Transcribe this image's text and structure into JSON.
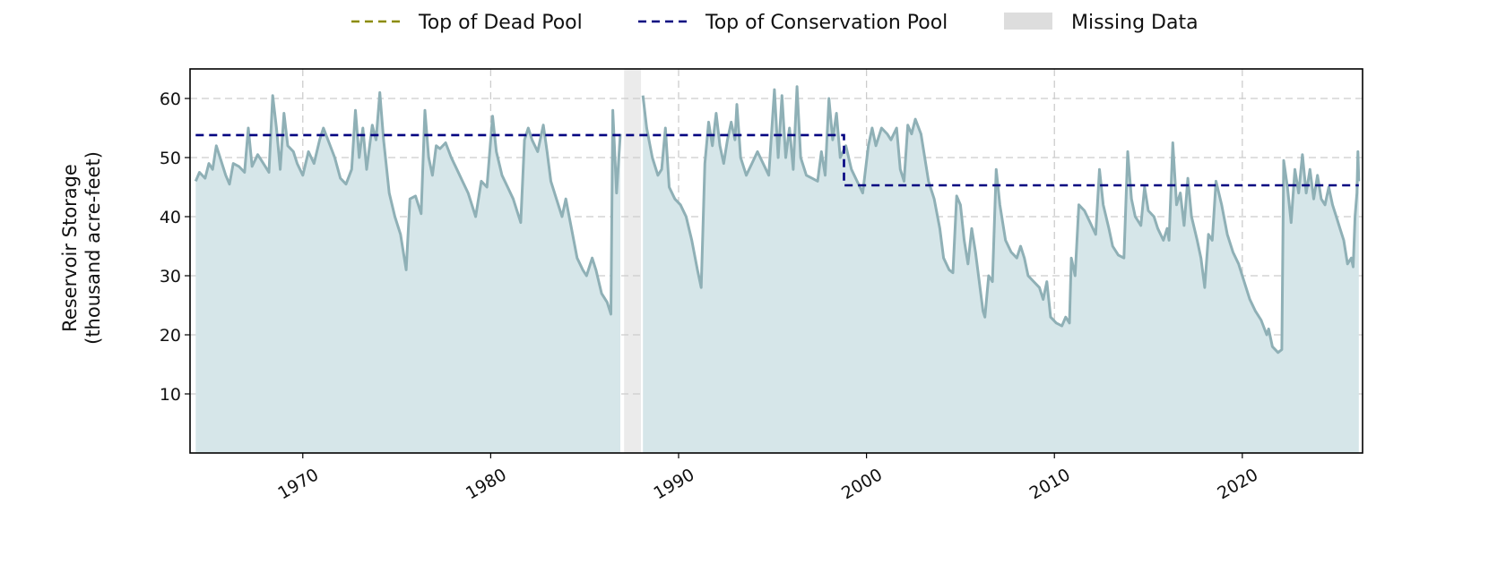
{
  "chart_data": {
    "type": "area",
    "title": "",
    "xlabel": "",
    "ylabel_lines": [
      "Reservoir Storage",
      "(thousand acre-feet)"
    ],
    "xlim": [
      1964.0,
      2026.4
    ],
    "ylim": [
      0,
      65
    ],
    "yticks": [
      10,
      20,
      30,
      40,
      50,
      60
    ],
    "xticks": [
      1970,
      1980,
      1990,
      2000,
      2010,
      2020
    ],
    "grid": true,
    "legend_position": "top-center",
    "legend": [
      {
        "label": "Top of Dead Pool",
        "style": "dashed-line",
        "color": "#8b8b00"
      },
      {
        "label": "Top of Conservation Pool",
        "style": "dashed-line",
        "color": "#000080"
      },
      {
        "label": "Missing Data",
        "style": "patch",
        "color": "#dddddd"
      }
    ],
    "colors": {
      "storage_line": "#8fb0b6",
      "storage_fill": "#d6e6e9",
      "conservation_pool": "#000080",
      "dead_pool": "#8b8b00",
      "missing": "#ebebeb",
      "grid": "#cccccc"
    },
    "missing_ranges": [
      [
        1987.1,
        1988.0
      ]
    ],
    "conservation_pool": {
      "x": [
        1964.3,
        1998.8,
        1998.8,
        2026.2
      ],
      "y": [
        53.8,
        53.8,
        45.3,
        45.3
      ]
    },
    "series": [
      {
        "values": [
          [
            1964.3,
            46.0
          ],
          [
            1964.5,
            47.5
          ],
          [
            1964.8,
            46.5
          ],
          [
            1965.0,
            49.0
          ],
          [
            1965.2,
            48.0
          ],
          [
            1965.4,
            52.0
          ],
          [
            1965.6,
            50.0
          ],
          [
            1965.9,
            47.0
          ],
          [
            1966.1,
            45.5
          ],
          [
            1966.3,
            49.0
          ],
          [
            1966.6,
            48.5
          ],
          [
            1966.9,
            47.5
          ],
          [
            1967.1,
            55.0
          ],
          [
            1967.3,
            48.5
          ],
          [
            1967.6,
            50.5
          ],
          [
            1967.9,
            49.0
          ],
          [
            1968.2,
            47.5
          ],
          [
            1968.4,
            60.5
          ],
          [
            1968.6,
            55.0
          ],
          [
            1968.8,
            48.0
          ],
          [
            1969.0,
            57.5
          ],
          [
            1969.2,
            52.0
          ],
          [
            1969.5,
            51.0
          ],
          [
            1969.7,
            49.0
          ],
          [
            1970.0,
            47.0
          ],
          [
            1970.3,
            51.0
          ],
          [
            1970.6,
            49.0
          ],
          [
            1970.9,
            53.0
          ],
          [
            1971.1,
            55.0
          ],
          [
            1971.4,
            52.5
          ],
          [
            1971.7,
            50.0
          ],
          [
            1972.0,
            46.5
          ],
          [
            1972.3,
            45.5
          ],
          [
            1972.6,
            48.0
          ],
          [
            1972.8,
            58.0
          ],
          [
            1973.0,
            50.0
          ],
          [
            1973.2,
            55.0
          ],
          [
            1973.4,
            48.0
          ],
          [
            1973.7,
            55.5
          ],
          [
            1973.9,
            53.0
          ],
          [
            1974.1,
            61.0
          ],
          [
            1974.3,
            53.0
          ],
          [
            1974.6,
            44.0
          ],
          [
            1974.9,
            40.0
          ],
          [
            1975.2,
            37.0
          ],
          [
            1975.4,
            33.0
          ],
          [
            1975.5,
            31.0
          ],
          [
            1975.7,
            43.0
          ],
          [
            1976.0,
            43.5
          ],
          [
            1976.3,
            40.5
          ],
          [
            1976.5,
            58.0
          ],
          [
            1976.7,
            50.0
          ],
          [
            1976.9,
            47.0
          ],
          [
            1977.1,
            52.0
          ],
          [
            1977.3,
            51.5
          ],
          [
            1977.6,
            52.5
          ],
          [
            1977.9,
            50.0
          ],
          [
            1978.2,
            48.0
          ],
          [
            1978.5,
            46.0
          ],
          [
            1978.8,
            44.0
          ],
          [
            1979.0,
            42.0
          ],
          [
            1979.2,
            40.0
          ],
          [
            1979.5,
            46.0
          ],
          [
            1979.8,
            45.0
          ],
          [
            1980.1,
            57.0
          ],
          [
            1980.3,
            51.0
          ],
          [
            1980.6,
            47.0
          ],
          [
            1980.9,
            45.0
          ],
          [
            1981.2,
            43.0
          ],
          [
            1981.4,
            41.0
          ],
          [
            1981.6,
            39.0
          ],
          [
            1981.8,
            53.0
          ],
          [
            1982.0,
            55.0
          ],
          [
            1982.2,
            53.0
          ],
          [
            1982.5,
            51.0
          ],
          [
            1982.8,
            55.5
          ],
          [
            1983.0,
            51.0
          ],
          [
            1983.2,
            46.0
          ],
          [
            1983.5,
            43.0
          ],
          [
            1983.8,
            40.0
          ],
          [
            1984.0,
            43.0
          ],
          [
            1984.3,
            38.0
          ],
          [
            1984.6,
            33.0
          ],
          [
            1984.9,
            31.0
          ],
          [
            1985.1,
            30.0
          ],
          [
            1985.4,
            33.0
          ],
          [
            1985.6,
            31.0
          ],
          [
            1985.9,
            27.0
          ],
          [
            1986.2,
            25.5
          ],
          [
            1986.4,
            23.5
          ],
          [
            1986.5,
            58.0
          ],
          [
            1986.7,
            44.0
          ],
          [
            1986.9,
            54.0
          ],
          [
            1987.1,
            53.0
          ],
          [
            1987.3,
            52.5
          ],
          [
            1987.5,
            56.0
          ],
          [
            1987.7,
            49.0
          ],
          [
            1987.9,
            54.5
          ],
          [
            1988.1,
            60.5
          ],
          [
            1988.3,
            55.0
          ],
          [
            1988.6,
            50.0
          ],
          [
            1988.9,
            47.0
          ],
          [
            1989.1,
            48.0
          ],
          [
            1989.3,
            55.0
          ],
          [
            1989.5,
            45.0
          ],
          [
            1989.8,
            43.0
          ],
          [
            1990.1,
            42.0
          ],
          [
            1990.4,
            40.0
          ],
          [
            1990.7,
            36.0
          ],
          [
            1991.0,
            31.0
          ],
          [
            1991.2,
            28.0
          ],
          [
            1991.4,
            49.0
          ],
          [
            1991.6,
            56.0
          ],
          [
            1991.8,
            52.0
          ],
          [
            1992.0,
            57.5
          ],
          [
            1992.2,
            52.0
          ],
          [
            1992.4,
            49.0
          ],
          [
            1992.6,
            53.0
          ],
          [
            1992.8,
            56.0
          ],
          [
            1993.0,
            53.0
          ],
          [
            1993.1,
            59.0
          ],
          [
            1993.3,
            50.0
          ],
          [
            1993.6,
            47.0
          ],
          [
            1993.9,
            49.0
          ],
          [
            1994.2,
            51.0
          ],
          [
            1994.5,
            49.0
          ],
          [
            1994.8,
            47.0
          ],
          [
            1995.1,
            61.5
          ],
          [
            1995.3,
            50.0
          ],
          [
            1995.5,
            60.5
          ],
          [
            1995.7,
            50.0
          ],
          [
            1995.9,
            55.0
          ],
          [
            1996.1,
            48.0
          ],
          [
            1996.3,
            62.0
          ],
          [
            1996.5,
            50.0
          ],
          [
            1996.8,
            47.0
          ],
          [
            1997.1,
            46.5
          ],
          [
            1997.4,
            46.0
          ],
          [
            1997.6,
            51.0
          ],
          [
            1997.8,
            47.0
          ],
          [
            1998.0,
            60.0
          ],
          [
            1998.2,
            53.0
          ],
          [
            1998.4,
            57.5
          ],
          [
            1998.6,
            50.0
          ],
          [
            1998.9,
            52.0
          ],
          [
            1999.2,
            48.0
          ],
          [
            1999.5,
            46.0
          ],
          [
            1999.8,
            44.0
          ],
          [
            2000.1,
            52.0
          ],
          [
            2000.3,
            55.0
          ],
          [
            2000.5,
            52.0
          ],
          [
            2000.8,
            55.0
          ],
          [
            2001.1,
            54.0
          ],
          [
            2001.3,
            53.0
          ],
          [
            2001.6,
            55.0
          ],
          [
            2001.8,
            48.0
          ],
          [
            2002.0,
            46.0
          ],
          [
            2002.2,
            55.5
          ],
          [
            2002.4,
            54.0
          ],
          [
            2002.6,
            56.5
          ],
          [
            2002.9,
            54.0
          ],
          [
            2003.1,
            50.0
          ],
          [
            2003.3,
            46.0
          ],
          [
            2003.6,
            43.0
          ],
          [
            2003.9,
            38.0
          ],
          [
            2004.1,
            33.0
          ],
          [
            2004.4,
            31.0
          ],
          [
            2004.6,
            30.5
          ],
          [
            2004.8,
            43.5
          ],
          [
            2005.0,
            42.0
          ],
          [
            2005.2,
            36.0
          ],
          [
            2005.4,
            32.0
          ],
          [
            2005.6,
            38.0
          ],
          [
            2005.8,
            34.0
          ],
          [
            2006.0,
            29.0
          ],
          [
            2006.2,
            24.0
          ],
          [
            2006.3,
            23.0
          ],
          [
            2006.5,
            30.0
          ],
          [
            2006.7,
            29.0
          ],
          [
            2006.9,
            48.0
          ],
          [
            2007.1,
            42.0
          ],
          [
            2007.4,
            36.0
          ],
          [
            2007.7,
            34.0
          ],
          [
            2008.0,
            33.0
          ],
          [
            2008.2,
            35.0
          ],
          [
            2008.4,
            33.0
          ],
          [
            2008.6,
            30.0
          ],
          [
            2008.9,
            29.0
          ],
          [
            2009.2,
            28.0
          ],
          [
            2009.4,
            26.0
          ],
          [
            2009.6,
            29.0
          ],
          [
            2009.8,
            23.0
          ],
          [
            2010.1,
            22.0
          ],
          [
            2010.4,
            21.5
          ],
          [
            2010.6,
            23.0
          ],
          [
            2010.8,
            22.0
          ],
          [
            2010.9,
            33.0
          ],
          [
            2011.1,
            30.0
          ],
          [
            2011.3,
            42.0
          ],
          [
            2011.6,
            41.0
          ],
          [
            2011.9,
            39.0
          ],
          [
            2012.2,
            37.0
          ],
          [
            2012.4,
            48.0
          ],
          [
            2012.6,
            42.0
          ],
          [
            2012.9,
            38.0
          ],
          [
            2013.1,
            35.0
          ],
          [
            2013.4,
            33.5
          ],
          [
            2013.7,
            33.0
          ],
          [
            2013.9,
            51.0
          ],
          [
            2014.1,
            43.0
          ],
          [
            2014.3,
            40.0
          ],
          [
            2014.6,
            38.5
          ],
          [
            2014.8,
            45.0
          ],
          [
            2015.0,
            41.0
          ],
          [
            2015.3,
            40.0
          ],
          [
            2015.5,
            38.0
          ],
          [
            2015.8,
            36.0
          ],
          [
            2016.0,
            38.0
          ],
          [
            2016.1,
            36.0
          ],
          [
            2016.3,
            52.5
          ],
          [
            2016.5,
            42.0
          ],
          [
            2016.7,
            44.0
          ],
          [
            2016.9,
            38.5
          ],
          [
            2017.1,
            46.5
          ],
          [
            2017.3,
            40.0
          ],
          [
            2017.6,
            36.0
          ],
          [
            2017.8,
            33.0
          ],
          [
            2018.0,
            28.0
          ],
          [
            2018.2,
            37.0
          ],
          [
            2018.4,
            36.0
          ],
          [
            2018.6,
            46.0
          ],
          [
            2018.9,
            42.0
          ],
          [
            2019.2,
            37.0
          ],
          [
            2019.5,
            34.0
          ],
          [
            2019.8,
            32.0
          ],
          [
            2020.1,
            29.0
          ],
          [
            2020.4,
            26.0
          ],
          [
            2020.7,
            24.0
          ],
          [
            2021.0,
            22.5
          ],
          [
            2021.3,
            20.0
          ],
          [
            2021.4,
            21.0
          ],
          [
            2021.6,
            18.0
          ],
          [
            2021.9,
            17.0
          ],
          [
            2022.1,
            17.5
          ],
          [
            2022.2,
            49.5
          ],
          [
            2022.4,
            45.0
          ],
          [
            2022.6,
            39.0
          ],
          [
            2022.8,
            48.0
          ],
          [
            2023.0,
            44.0
          ],
          [
            2023.2,
            50.5
          ],
          [
            2023.4,
            44.0
          ],
          [
            2023.6,
            48.0
          ],
          [
            2023.8,
            43.0
          ],
          [
            2024.0,
            47.0
          ],
          [
            2024.2,
            43.0
          ],
          [
            2024.4,
            42.0
          ],
          [
            2024.6,
            45.0
          ],
          [
            2024.8,
            42.0
          ],
          [
            2025.0,
            40.0
          ],
          [
            2025.2,
            38.0
          ],
          [
            2025.4,
            36.0
          ],
          [
            2025.5,
            34.0
          ],
          [
            2025.6,
            32.0
          ],
          [
            2025.8,
            33.0
          ],
          [
            2025.9,
            31.5
          ],
          [
            2026.0,
            40.0
          ],
          [
            2026.1,
            44.0
          ],
          [
            2026.15,
            51.0
          ],
          [
            2026.2,
            46.0
          ]
        ]
      }
    ]
  }
}
